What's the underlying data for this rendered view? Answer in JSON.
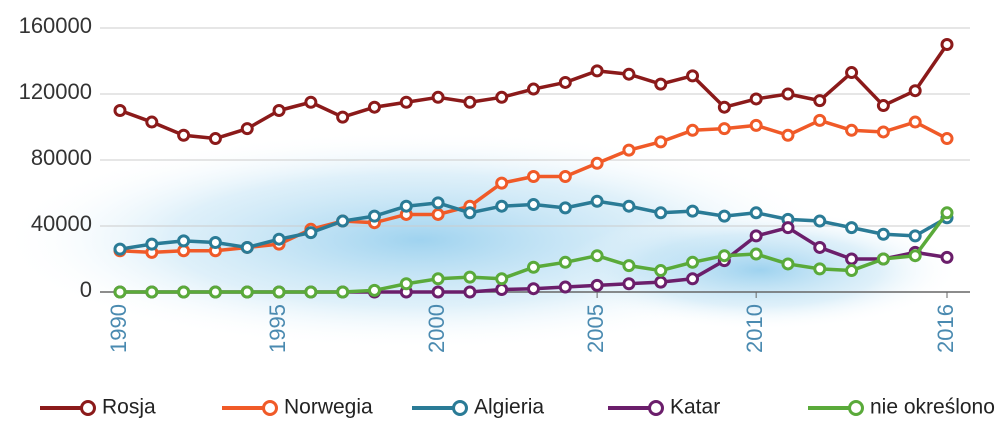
{
  "chart_data": {
    "type": "line",
    "x": [
      1990,
      1991,
      1992,
      1993,
      1994,
      1995,
      1996,
      1997,
      1998,
      1999,
      2000,
      2001,
      2002,
      2003,
      2004,
      2005,
      2006,
      2007,
      2008,
      2009,
      2010,
      2011,
      2012,
      2013,
      2014,
      2015,
      2016
    ],
    "xlim": [
      1990,
      2016
    ],
    "xticks": [
      1990,
      1995,
      2000,
      2005,
      2010,
      2016
    ],
    "ylim": [
      0,
      160000
    ],
    "yticks": [
      0,
      40000,
      80000,
      120000,
      160000
    ],
    "grid": true,
    "legend": "bottom",
    "series": [
      {
        "name": "Rosja",
        "color": "#8b1a1a",
        "values": [
          110000,
          103000,
          95000,
          93000,
          99000,
          110000,
          115000,
          106000,
          112000,
          115000,
          118000,
          115000,
          118000,
          123000,
          127000,
          134000,
          132000,
          126000,
          131000,
          112000,
          117000,
          120000,
          116000,
          133000,
          113000,
          122000,
          150000
        ]
      },
      {
        "name": "Norwegia",
        "color": "#f05a28",
        "values": [
          25000,
          24000,
          25000,
          25000,
          27000,
          29000,
          38000,
          43000,
          42000,
          47000,
          47000,
          52000,
          66000,
          70000,
          70000,
          78000,
          86000,
          91000,
          98000,
          99000,
          101000,
          95000,
          104000,
          98000,
          97000,
          103000,
          93000
        ]
      },
      {
        "name": "Algieria",
        "color": "#2a7b96",
        "values": [
          26000,
          29000,
          31000,
          30000,
          27000,
          32000,
          36000,
          43000,
          46000,
          52000,
          54000,
          48000,
          52000,
          53000,
          51000,
          55000,
          52000,
          48000,
          49000,
          46000,
          48000,
          44000,
          43000,
          39000,
          35000,
          34000,
          45000
        ]
      },
      {
        "name": "Katar",
        "color": "#6b1e6b",
        "values": [
          0,
          0,
          0,
          0,
          0,
          0,
          0,
          0,
          0,
          0,
          0,
          0,
          1500,
          2000,
          3000,
          4000,
          5000,
          6000,
          8000,
          19000,
          34000,
          39000,
          27000,
          20000,
          20000,
          24000,
          21000
        ]
      },
      {
        "name": "nie określono",
        "color": "#5aaa3a",
        "values": [
          0,
          0,
          0,
          0,
          0,
          0,
          0,
          0,
          1000,
          5000,
          8000,
          9000,
          8000,
          15000,
          18000,
          22000,
          16000,
          13000,
          18000,
          22000,
          23000,
          17000,
          14000,
          13000,
          20000,
          22000,
          48000
        ]
      }
    ]
  }
}
